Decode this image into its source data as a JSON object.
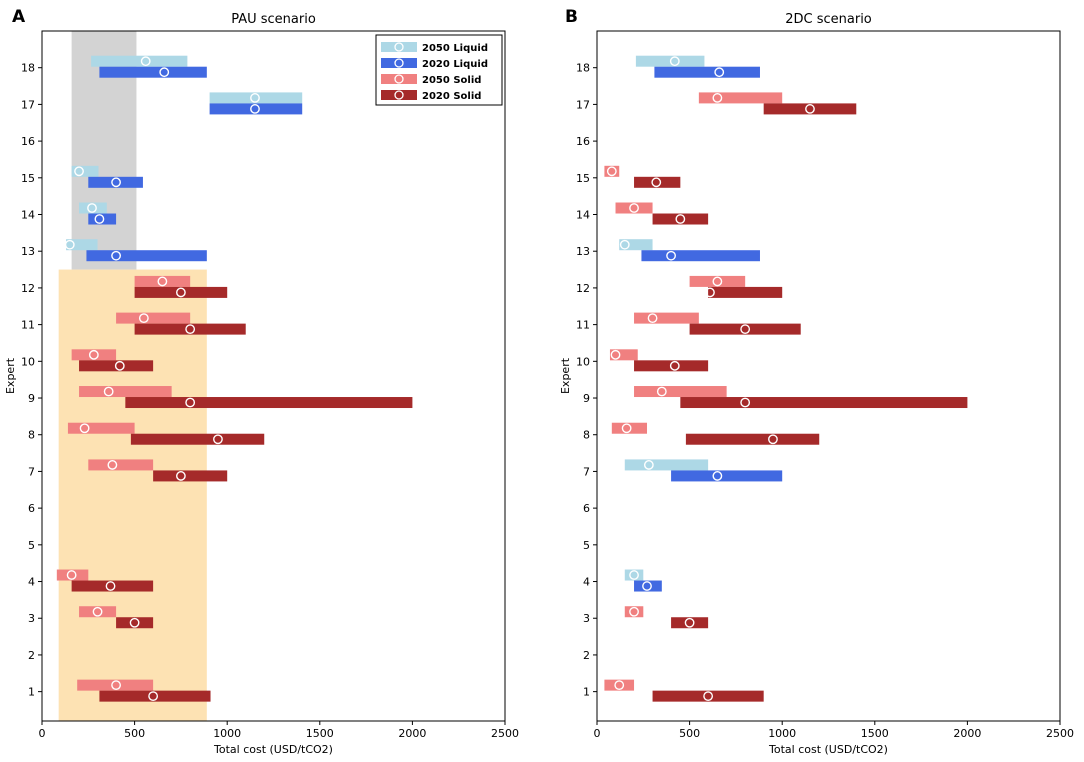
{
  "colors": {
    "liquid2050": "#add8e6",
    "liquid2020": "#4169e1",
    "solid2050": "#f08080",
    "solid2020": "#a52a2a",
    "highlight_gray": "#d3d3d3",
    "highlight_orange": "#fde2b3"
  },
  "chart_data": [
    {
      "type": "bar",
      "panel_letter": "A",
      "title": "PAU scenario",
      "xlabel": "Total cost (USD/tCO2)",
      "ylabel": "Expert",
      "xlim": [
        0,
        2500
      ],
      "ylim": [
        0.2,
        19
      ],
      "xticks": [
        0,
        500,
        1000,
        1500,
        2000,
        2500
      ],
      "yticks": [
        1,
        2,
        3,
        4,
        5,
        6,
        7,
        8,
        9,
        10,
        11,
        12,
        13,
        14,
        15,
        16,
        17,
        18
      ],
      "legend": {
        "placement": "top-right",
        "entries": [
          {
            "key": "liquid2050",
            "label": "2050 Liquid"
          },
          {
            "key": "liquid2020",
            "label": "2020 Liquid"
          },
          {
            "key": "solid2050",
            "label": "2050 Solid"
          },
          {
            "key": "solid2020",
            "label": "2020 Solid"
          }
        ]
      },
      "highlight_regions": [
        {
          "color": "highlight_gray",
          "x_range": [
            160,
            510
          ],
          "y_range": [
            12.5,
            19
          ]
        },
        {
          "color": "highlight_orange",
          "x_range": [
            90,
            890
          ],
          "y_range": [
            0.2,
            12.5
          ]
        }
      ],
      "series": [
        {
          "expert": 18,
          "key": "liquid2050",
          "low": 265,
          "high": 785,
          "mid": 560
        },
        {
          "expert": 18,
          "key": "liquid2020",
          "low": 310,
          "high": 890,
          "mid": 660
        },
        {
          "expert": 17,
          "key": "liquid2050",
          "low": 905,
          "high": 1405,
          "mid": 1150
        },
        {
          "expert": 17,
          "key": "liquid2020",
          "low": 905,
          "high": 1405,
          "mid": 1150
        },
        {
          "expert": 15,
          "key": "liquid2050",
          "low": 160,
          "high": 305,
          "mid": 200
        },
        {
          "expert": 15,
          "key": "liquid2020",
          "low": 250,
          "high": 545,
          "mid": 400
        },
        {
          "expert": 14,
          "key": "liquid2050",
          "low": 200,
          "high": 350,
          "mid": 270
        },
        {
          "expert": 14,
          "key": "liquid2020",
          "low": 250,
          "high": 400,
          "mid": 310
        },
        {
          "expert": 13,
          "key": "liquid2050",
          "low": 130,
          "high": 300,
          "mid": 150
        },
        {
          "expert": 13,
          "key": "liquid2020",
          "low": 240,
          "high": 890,
          "mid": 400
        },
        {
          "expert": 12,
          "key": "solid2050",
          "low": 500,
          "high": 800,
          "mid": 650
        },
        {
          "expert": 12,
          "key": "solid2020",
          "low": 500,
          "high": 1000,
          "mid": 750
        },
        {
          "expert": 11,
          "key": "solid2050",
          "low": 400,
          "high": 800,
          "mid": 550
        },
        {
          "expert": 11,
          "key": "solid2020",
          "low": 500,
          "high": 1100,
          "mid": 800
        },
        {
          "expert": 10,
          "key": "solid2050",
          "low": 160,
          "high": 400,
          "mid": 280
        },
        {
          "expert": 10,
          "key": "solid2020",
          "low": 200,
          "high": 600,
          "mid": 420
        },
        {
          "expert": 9,
          "key": "solid2050",
          "low": 200,
          "high": 700,
          "mid": 360
        },
        {
          "expert": 9,
          "key": "solid2020",
          "low": 450,
          "high": 2000,
          "mid": 800
        },
        {
          "expert": 8,
          "key": "solid2050",
          "low": 140,
          "high": 500,
          "mid": 230
        },
        {
          "expert": 8,
          "key": "solid2020",
          "low": 480,
          "high": 1200,
          "mid": 950
        },
        {
          "expert": 7,
          "key": "solid2050",
          "low": 250,
          "high": 600,
          "mid": 380
        },
        {
          "expert": 7,
          "key": "solid2020",
          "low": 600,
          "high": 1000,
          "mid": 750
        },
        {
          "expert": 4,
          "key": "solid2050",
          "low": 80,
          "high": 250,
          "mid": 160
        },
        {
          "expert": 4,
          "key": "solid2020",
          "low": 160,
          "high": 600,
          "mid": 370
        },
        {
          "expert": 3,
          "key": "solid2050",
          "low": 200,
          "high": 400,
          "mid": 300
        },
        {
          "expert": 3,
          "key": "solid2020",
          "low": 400,
          "high": 600,
          "mid": 500
        },
        {
          "expert": 1,
          "key": "solid2050",
          "low": 190,
          "high": 600,
          "mid": 400
        },
        {
          "expert": 1,
          "key": "solid2020",
          "low": 310,
          "high": 910,
          "mid": 600
        }
      ]
    },
    {
      "type": "bar",
      "panel_letter": "B",
      "title": "2DC scenario",
      "xlabel": "Total cost (USD/tCO2)",
      "ylabel": "Expert",
      "xlim": [
        0,
        2500
      ],
      "ylim": [
        0.2,
        19
      ],
      "xticks": [
        0,
        500,
        1000,
        1500,
        2000,
        2500
      ],
      "yticks": [
        1,
        2,
        3,
        4,
        5,
        6,
        7,
        8,
        9,
        10,
        11,
        12,
        13,
        14,
        15,
        16,
        17,
        18
      ],
      "legend": null,
      "highlight_regions": [],
      "series": [
        {
          "expert": 18,
          "key": "liquid2050",
          "low": 210,
          "high": 580,
          "mid": 420
        },
        {
          "expert": 18,
          "key": "liquid2020",
          "low": 310,
          "high": 880,
          "mid": 660
        },
        {
          "expert": 17,
          "key": "solid2050",
          "low": 550,
          "high": 1000,
          "mid": 650
        },
        {
          "expert": 17,
          "key": "solid2020",
          "low": 900,
          "high": 1400,
          "mid": 1150
        },
        {
          "expert": 15,
          "key": "solid2050",
          "low": 40,
          "high": 120,
          "mid": 80
        },
        {
          "expert": 15,
          "key": "solid2020",
          "low": 200,
          "high": 450,
          "mid": 320
        },
        {
          "expert": 14,
          "key": "solid2050",
          "low": 100,
          "high": 300,
          "mid": 200
        },
        {
          "expert": 14,
          "key": "solid2020",
          "low": 300,
          "high": 600,
          "mid": 450
        },
        {
          "expert": 13,
          "key": "liquid2050",
          "low": 120,
          "high": 300,
          "mid": 150
        },
        {
          "expert": 13,
          "key": "liquid2020",
          "low": 240,
          "high": 880,
          "mid": 400
        },
        {
          "expert": 12,
          "key": "solid2050",
          "low": 500,
          "high": 800,
          "mid": 650
        },
        {
          "expert": 12,
          "key": "solid2020",
          "low": 600,
          "high": 1000,
          "mid": 610
        },
        {
          "expert": 11,
          "key": "solid2050",
          "low": 200,
          "high": 550,
          "mid": 300
        },
        {
          "expert": 11,
          "key": "solid2020",
          "low": 500,
          "high": 1100,
          "mid": 800
        },
        {
          "expert": 10,
          "key": "solid2050",
          "low": 70,
          "high": 220,
          "mid": 100
        },
        {
          "expert": 10,
          "key": "solid2020",
          "low": 200,
          "high": 600,
          "mid": 420
        },
        {
          "expert": 9,
          "key": "solid2050",
          "low": 200,
          "high": 700,
          "mid": 350
        },
        {
          "expert": 9,
          "key": "solid2020",
          "low": 450,
          "high": 2000,
          "mid": 800
        },
        {
          "expert": 8,
          "key": "solid2050",
          "low": 80,
          "high": 270,
          "mid": 160
        },
        {
          "expert": 8,
          "key": "solid2020",
          "low": 480,
          "high": 1200,
          "mid": 950
        },
        {
          "expert": 7,
          "key": "liquid2050",
          "low": 150,
          "high": 600,
          "mid": 280
        },
        {
          "expert": 7,
          "key": "liquid2020",
          "low": 400,
          "high": 1000,
          "mid": 650
        },
        {
          "expert": 4,
          "key": "liquid2050",
          "low": 150,
          "high": 250,
          "mid": 200
        },
        {
          "expert": 4,
          "key": "liquid2020",
          "low": 200,
          "high": 350,
          "mid": 270
        },
        {
          "expert": 3,
          "key": "solid2050",
          "low": 150,
          "high": 250,
          "mid": 200
        },
        {
          "expert": 3,
          "key": "solid2020",
          "low": 400,
          "high": 600,
          "mid": 500
        },
        {
          "expert": 1,
          "key": "solid2050",
          "low": 40,
          "high": 200,
          "mid": 120
        },
        {
          "expert": 1,
          "key": "solid2020",
          "low": 300,
          "high": 900,
          "mid": 600
        }
      ]
    }
  ]
}
